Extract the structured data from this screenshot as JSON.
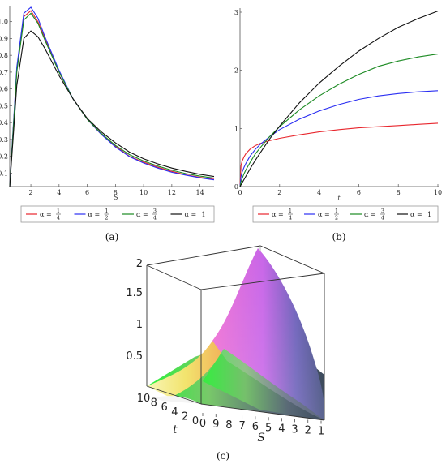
{
  "legend": {
    "prefix": "α =",
    "entries": [
      {
        "num": "1",
        "den": "4",
        "text": "",
        "color": "#e8262d"
      },
      {
        "num": "1",
        "den": "2",
        "text": "",
        "color": "#2b2ff2"
      },
      {
        "num": "3",
        "den": "4",
        "text": "",
        "color": "#1b8a22"
      },
      {
        "num": "",
        "den": "",
        "text": "1",
        "color": "#111111"
      }
    ]
  },
  "captions": {
    "a": "(a)",
    "b": "(b)",
    "c": "(c)"
  },
  "chart_data": [
    {
      "panel": "a",
      "type": "line",
      "title": "",
      "xlabel": "S",
      "ylabel": "",
      "xlim": [
        0.5,
        15
      ],
      "ylim": [
        0.02,
        1.09
      ],
      "xticks": [
        2,
        4,
        6,
        8,
        10,
        12,
        14
      ],
      "yticks": [
        0.1,
        0.2,
        0.3,
        0.4,
        0.5,
        0.6,
        0.7,
        0.8,
        0.9,
        1.0
      ],
      "grid": false,
      "series": [
        {
          "name": "α = 1/4",
          "color": "#e8262d",
          "x": [
            0.5,
            1.0,
            1.5,
            2.0,
            2.5,
            3,
            4,
            5,
            6,
            7,
            8,
            9,
            10,
            11,
            12,
            13,
            14,
            15
          ],
          "y": [
            0.02,
            0.71,
            1.03,
            1.065,
            1.0,
            0.9,
            0.7,
            0.54,
            0.42,
            0.33,
            0.26,
            0.2,
            0.165,
            0.135,
            0.11,
            0.09,
            0.075,
            0.063
          ]
        },
        {
          "name": "α = 1/2",
          "color": "#2b2ff2",
          "x": [
            0.5,
            1.0,
            1.5,
            2.0,
            2.5,
            3,
            4,
            5,
            6,
            7,
            8,
            9,
            10,
            11,
            12,
            13,
            14,
            15
          ],
          "y": [
            0.02,
            0.73,
            1.05,
            1.085,
            1.02,
            0.91,
            0.71,
            0.54,
            0.42,
            0.33,
            0.255,
            0.198,
            0.16,
            0.13,
            0.105,
            0.088,
            0.072,
            0.06
          ]
        },
        {
          "name": "α = 3/4",
          "color": "#1b8a22",
          "x": [
            0.5,
            1.0,
            1.5,
            2.0,
            2.5,
            3,
            4,
            5,
            6,
            7,
            8,
            9,
            10,
            11,
            12,
            13,
            14,
            15
          ],
          "y": [
            0.02,
            0.7,
            1.01,
            1.05,
            0.99,
            0.89,
            0.7,
            0.54,
            0.42,
            0.335,
            0.265,
            0.21,
            0.172,
            0.142,
            0.117,
            0.097,
            0.082,
            0.07
          ]
        },
        {
          "name": "α = 1",
          "color": "#111111",
          "x": [
            0.5,
            1.0,
            1.5,
            2.0,
            2.5,
            3,
            4,
            5,
            6,
            7,
            8,
            9,
            10,
            11,
            12,
            13,
            14,
            15
          ],
          "y": [
            0.02,
            0.62,
            0.9,
            0.945,
            0.91,
            0.84,
            0.68,
            0.54,
            0.425,
            0.345,
            0.28,
            0.225,
            0.185,
            0.155,
            0.13,
            0.11,
            0.093,
            0.08
          ]
        }
      ]
    },
    {
      "panel": "b",
      "type": "line",
      "title": "",
      "xlabel": "t",
      "ylabel": "",
      "xlim": [
        0,
        10
      ],
      "ylim": [
        0,
        3
      ],
      "xticks": [
        0,
        2,
        4,
        6,
        8,
        10
      ],
      "yticks": [
        0,
        1,
        2,
        3
      ],
      "grid": false,
      "series": [
        {
          "name": "α = 1/4",
          "color": "#e8262d",
          "x": [
            0,
            0.05,
            0.1,
            0.2,
            0.3,
            0.5,
            0.75,
            1,
            1.5,
            2,
            3,
            4,
            5,
            6,
            7,
            8,
            9,
            10
          ],
          "y": [
            0,
            0.36,
            0.43,
            0.51,
            0.57,
            0.64,
            0.7,
            0.74,
            0.79,
            0.83,
            0.89,
            0.94,
            0.98,
            1.01,
            1.03,
            1.05,
            1.07,
            1.09
          ]
        },
        {
          "name": "α = 1/2",
          "color": "#2b2ff2",
          "x": [
            0,
            0.05,
            0.1,
            0.2,
            0.3,
            0.5,
            0.75,
            1,
            1.5,
            2,
            3,
            4,
            5,
            6,
            7,
            8,
            9,
            10
          ],
          "y": [
            0,
            0.17,
            0.24,
            0.33,
            0.4,
            0.52,
            0.63,
            0.72,
            0.86,
            0.98,
            1.16,
            1.3,
            1.41,
            1.5,
            1.56,
            1.6,
            1.63,
            1.65
          ]
        },
        {
          "name": "α = 3/4",
          "color": "#1b8a22",
          "x": [
            0,
            0.05,
            0.1,
            0.2,
            0.3,
            0.5,
            0.75,
            1,
            1.5,
            2,
            3,
            4,
            5,
            6,
            7,
            8,
            9,
            10
          ],
          "y": [
            0,
            0.08,
            0.13,
            0.22,
            0.29,
            0.41,
            0.55,
            0.66,
            0.86,
            1.03,
            1.32,
            1.56,
            1.76,
            1.93,
            2.07,
            2.16,
            2.23,
            2.28
          ]
        },
        {
          "name": "α = 1",
          "color": "#111111",
          "x": [
            0,
            0.05,
            0.1,
            0.2,
            0.3,
            0.5,
            0.75,
            1,
            1.5,
            2,
            3,
            4,
            5,
            6,
            7,
            8,
            9,
            10
          ],
          "y": [
            0,
            0.03,
            0.06,
            0.12,
            0.18,
            0.3,
            0.44,
            0.57,
            0.82,
            1.04,
            1.44,
            1.78,
            2.07,
            2.33,
            2.55,
            2.74,
            2.89,
            3.02
          ]
        }
      ]
    },
    {
      "panel": "c",
      "type": "surface",
      "title": "",
      "xlabel": "S",
      "ylabel": "t",
      "zlabel": "",
      "xticks": [
        "9",
        "8",
        "7",
        "6",
        "5",
        "4",
        "3",
        "2",
        "1"
      ],
      "xextra": "0",
      "yticks": [
        "0",
        "2",
        "4",
        "6",
        "8",
        "10"
      ],
      "zticks": [
        "0.5",
        "1",
        "1.5",
        "2"
      ],
      "zlim": [
        0,
        2
      ]
    }
  ]
}
